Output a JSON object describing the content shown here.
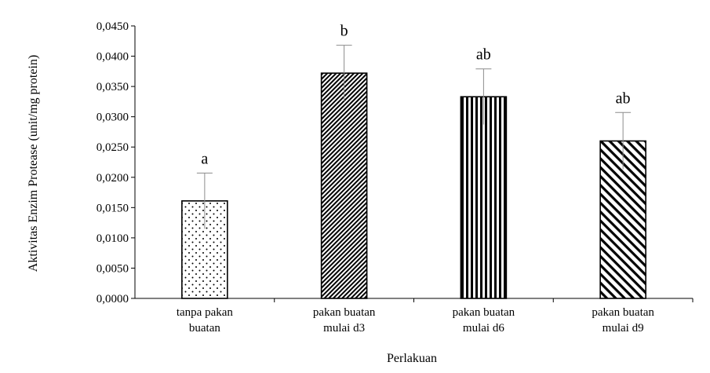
{
  "chart_data": {
    "type": "bar",
    "title": "",
    "xlabel": "Perlakuan",
    "ylabel": "Aktivitas Enzim Protease (unit/mg protein)",
    "ylim": [
      0,
      0.045
    ],
    "yticks": [
      "0,0000",
      "0,0050",
      "0,0100",
      "0,0150",
      "0,0200",
      "0,0250",
      "0,0300",
      "0,0350",
      "0,0400",
      "0,0450"
    ],
    "grid": false,
    "categories": [
      [
        "tanpa pakan",
        "buatan"
      ],
      [
        "pakan buatan",
        "mulai d3"
      ],
      [
        "pakan buatan",
        "mulai d6"
      ],
      [
        "pakan buatan",
        "mulai d9"
      ]
    ],
    "values": [
      0.0161,
      0.0372,
      0.0333,
      0.026
    ],
    "error": [
      0.0046,
      0.0046,
      0.0046,
      0.0047
    ],
    "significance_labels": [
      "a",
      "b",
      "ab",
      "ab"
    ],
    "patterns": [
      "dots",
      "dense-diagonal-up",
      "vertical-lines",
      "diagonal-down"
    ],
    "colors": {
      "bar_stroke": "#000000",
      "error_bar": "#8c8c8c",
      "axis": "#000000"
    }
  }
}
